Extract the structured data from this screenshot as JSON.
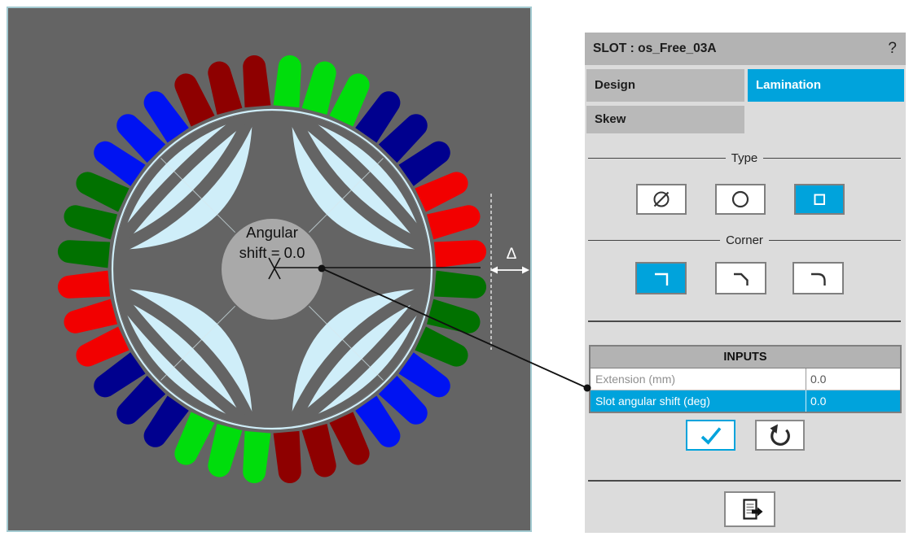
{
  "left_view": {
    "annotation": {
      "line1": "Angular",
      "line2": "shift = 0.0"
    },
    "delta_symbol": "Δ",
    "slot_count": 36,
    "slots_per_group": 3,
    "first_slot_angle_deg": 5,
    "slot_angle_step_deg": 10,
    "winding_sequence_clockwise_from_top": [
      "green",
      "navy",
      "red",
      "dark_green",
      "blue",
      "dark_red",
      "green",
      "navy",
      "red",
      "dark_green",
      "blue",
      "dark_red"
    ],
    "colors": {
      "panel_bg": "#646464",
      "panel_border": "#a3cad1",
      "flux_lines": "#cfeef9",
      "bore_ring": "#cfeef9",
      "shaft": "#a9a9a9",
      "green": "#00dd0c",
      "navy": "#00008e",
      "red": "#f20000",
      "dark_green": "#017100",
      "blue": "#0013f2",
      "dark_red": "#8e0000",
      "annotation_text": "#111111",
      "measure": "#ffffff",
      "callout": "#111111"
    }
  },
  "panel": {
    "title": "SLOT : os_Free_03A",
    "help_label": "?",
    "accent_color": "#00a3dc",
    "tabs": [
      {
        "label": "Design",
        "active": false
      },
      {
        "label": "Lamination",
        "active": true
      },
      {
        "label": "Skew",
        "active": false
      }
    ],
    "type_section": {
      "legend": "Type",
      "options": [
        {
          "name": "slashed-circle",
          "selected": false
        },
        {
          "name": "circle",
          "selected": false
        },
        {
          "name": "square",
          "selected": true
        }
      ]
    },
    "corner_section": {
      "legend": "Corner",
      "options": [
        {
          "name": "sharp-corner",
          "selected": true
        },
        {
          "name": "chamfered-corner",
          "selected": false
        },
        {
          "name": "rounded-corner",
          "selected": false
        }
      ]
    },
    "inputs": {
      "header": "INPUTS",
      "rows": [
        {
          "label": "Extension (mm)",
          "value": "0.0",
          "selected": false
        },
        {
          "label": "Slot angular shift (deg)",
          "value": "0.0",
          "selected": true
        }
      ]
    }
  }
}
